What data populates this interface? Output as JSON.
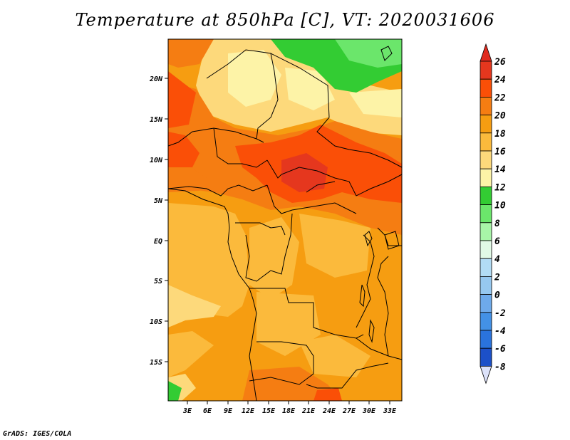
{
  "title": "Temperature at 850hPa [C], VT: 2020031606",
  "credit": "GrADS: IGES/COLA",
  "map": {
    "lat_labels": [
      "20N",
      "15N",
      "10N",
      "5N",
      "EQ",
      "5S",
      "10S",
      "15S"
    ],
    "lon_labels": [
      "3E",
      "6E",
      "9E",
      "12E",
      "15E",
      "18E",
      "21E",
      "24E",
      "27E",
      "30E",
      "33E"
    ]
  },
  "colorbar": {
    "levels": [
      {
        "label": "26",
        "color": "#e5371e"
      },
      {
        "label": "24",
        "color": "#fa4f07"
      },
      {
        "label": "22",
        "color": "#f57d12"
      },
      {
        "label": "20",
        "color": "#f69d11"
      },
      {
        "label": "18",
        "color": "#fbba3c"
      },
      {
        "label": "16",
        "color": "#fdd97b"
      },
      {
        "label": "14",
        "color": "#fdf3a7"
      },
      {
        "label": "12",
        "color": "#33cc33"
      },
      {
        "label": "10",
        "color": "#6be66b"
      },
      {
        "label": "8",
        "color": "#a8f5a8"
      },
      {
        "label": "6",
        "color": "#e1fae6"
      },
      {
        "label": "4",
        "color": "#b2dcf5"
      },
      {
        "label": "2",
        "color": "#96c8f0"
      },
      {
        "label": "0",
        "color": "#6eaaeb"
      },
      {
        "label": "-2",
        "color": "#4391e6"
      },
      {
        "label": "-4",
        "color": "#2a73dc"
      },
      {
        "label": "-6",
        "color": "#1c50c8"
      },
      {
        "label": "-8",
        "color": "#1130a8"
      }
    ],
    "under_color": "#0a1480",
    "over_color": "#e02a1e",
    "bottom_triangle_color": "#dce2fa"
  }
}
